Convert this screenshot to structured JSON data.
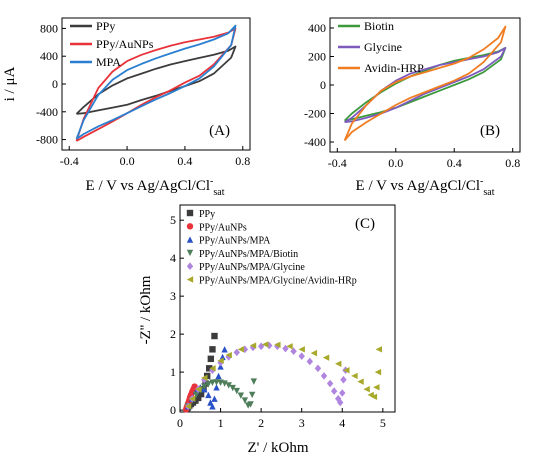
{
  "chart_data": [
    {
      "type": "line",
      "panel_label": "(A)",
      "xlabel": "E / V vs Ag/AgCl/Cl",
      "xlabel_sup": "-",
      "xlabel_sub": "sat",
      "ylabel": "i / μA",
      "xlim": [
        -0.45,
        0.85
      ],
      "ylim": [
        -950,
        950
      ],
      "xticks": [
        -0.4,
        0.0,
        0.4,
        0.8
      ],
      "xtick_labels": [
        "-0.4",
        "0.0",
        "0.4",
        "0.8"
      ],
      "yticks": [
        -800,
        -400,
        0,
        400,
        800
      ],
      "ytick_labels": [
        "-800",
        "-400",
        "0",
        "400",
        "800"
      ],
      "legend_position": "top-left",
      "series": [
        {
          "name": "PPy",
          "color": "#3c3c3c",
          "loop": [
            [
              -0.35,
              -430
            ],
            [
              -0.3,
              -330
            ],
            [
              -0.2,
              -150
            ],
            [
              -0.1,
              -20
            ],
            [
              0.0,
              80
            ],
            [
              0.1,
              150
            ],
            [
              0.2,
              220
            ],
            [
              0.3,
              280
            ],
            [
              0.4,
              330
            ],
            [
              0.5,
              375
            ],
            [
              0.6,
              420
            ],
            [
              0.7,
              480
            ],
            [
              0.75,
              540
            ],
            [
              0.72,
              380
            ],
            [
              0.6,
              150
            ],
            [
              0.5,
              40
            ],
            [
              0.4,
              -30
            ],
            [
              0.3,
              -100
            ],
            [
              0.2,
              -170
            ],
            [
              0.1,
              -230
            ],
            [
              0.0,
              -300
            ],
            [
              -0.1,
              -340
            ],
            [
              -0.2,
              -380
            ],
            [
              -0.3,
              -420
            ],
            [
              -0.35,
              -430
            ]
          ]
        },
        {
          "name": "PPy/AuNPs",
          "color": "#e8333a",
          "loop": [
            [
              -0.35,
              -820
            ],
            [
              -0.3,
              -500
            ],
            [
              -0.2,
              -60
            ],
            [
              -0.1,
              180
            ],
            [
              0.0,
              330
            ],
            [
              0.1,
              420
            ],
            [
              0.2,
              490
            ],
            [
              0.3,
              550
            ],
            [
              0.4,
              600
            ],
            [
              0.5,
              640
            ],
            [
              0.6,
              680
            ],
            [
              0.7,
              740
            ],
            [
              0.75,
              800
            ],
            [
              0.72,
              560
            ],
            [
              0.6,
              280
            ],
            [
              0.5,
              120
            ],
            [
              0.4,
              20
            ],
            [
              0.3,
              -90
            ],
            [
              0.2,
              -190
            ],
            [
              0.1,
              -300
            ],
            [
              0.0,
              -420
            ],
            [
              -0.1,
              -540
            ],
            [
              -0.2,
              -650
            ],
            [
              -0.3,
              -760
            ],
            [
              -0.35,
              -820
            ]
          ]
        },
        {
          "name": "MPA",
          "color": "#2a7fd0",
          "loop": [
            [
              -0.35,
              -790
            ],
            [
              -0.3,
              -520
            ],
            [
              -0.2,
              -160
            ],
            [
              -0.1,
              60
            ],
            [
              0.0,
              200
            ],
            [
              0.1,
              290
            ],
            [
              0.2,
              370
            ],
            [
              0.3,
              440
            ],
            [
              0.4,
              510
            ],
            [
              0.5,
              570
            ],
            [
              0.6,
              640
            ],
            [
              0.7,
              730
            ],
            [
              0.75,
              840
            ],
            [
              0.72,
              560
            ],
            [
              0.6,
              250
            ],
            [
              0.5,
              80
            ],
            [
              0.4,
              -30
            ],
            [
              0.3,
              -130
            ],
            [
              0.2,
              -220
            ],
            [
              0.1,
              -320
            ],
            [
              0.0,
              -420
            ],
            [
              -0.1,
              -520
            ],
            [
              -0.2,
              -610
            ],
            [
              -0.3,
              -720
            ],
            [
              -0.35,
              -790
            ]
          ]
        }
      ]
    },
    {
      "type": "line",
      "panel_label": "(B)",
      "xlabel": "E / V vs Ag/AgCl/Cl",
      "xlabel_sup": "-",
      "xlabel_sub": "sat",
      "ylabel": "",
      "xlim": [
        -0.45,
        0.85
      ],
      "ylim": [
        -470,
        470
      ],
      "xticks": [
        -0.4,
        0.0,
        0.4,
        0.8
      ],
      "xtick_labels": [
        "-0.4",
        "0.0",
        "0.4",
        "0.8"
      ],
      "yticks": [
        -400,
        -200,
        0,
        200,
        400
      ],
      "ytick_labels": [
        "-400",
        "-200",
        "0",
        "200",
        "400"
      ],
      "legend_position": "top-left",
      "series": [
        {
          "name": "Biotin",
          "color": "#3c9a3c",
          "loop": [
            [
              -0.35,
              -250
            ],
            [
              -0.3,
              -200
            ],
            [
              -0.2,
              -120
            ],
            [
              -0.1,
              -50
            ],
            [
              0.0,
              10
            ],
            [
              0.1,
              60
            ],
            [
              0.2,
              100
            ],
            [
              0.3,
              140
            ],
            [
              0.4,
              170
            ],
            [
              0.5,
              190
            ],
            [
              0.6,
              210
            ],
            [
              0.7,
              235
            ],
            [
              0.75,
              260
            ],
            [
              0.72,
              180
            ],
            [
              0.6,
              90
            ],
            [
              0.5,
              40
            ],
            [
              0.4,
              0
            ],
            [
              0.3,
              -40
            ],
            [
              0.2,
              -80
            ],
            [
              0.1,
              -120
            ],
            [
              0.0,
              -160
            ],
            [
              -0.1,
              -190
            ],
            [
              -0.2,
              -215
            ],
            [
              -0.3,
              -240
            ],
            [
              -0.35,
              -250
            ]
          ]
        },
        {
          "name": "Glycine",
          "color": "#7d5bbd",
          "loop": [
            [
              -0.35,
              -260
            ],
            [
              -0.3,
              -230
            ],
            [
              -0.2,
              -140
            ],
            [
              -0.1,
              -40
            ],
            [
              0.0,
              30
            ],
            [
              0.1,
              80
            ],
            [
              0.2,
              110
            ],
            [
              0.3,
              140
            ],
            [
              0.4,
              160
            ],
            [
              0.5,
              180
            ],
            [
              0.6,
              200
            ],
            [
              0.7,
              230
            ],
            [
              0.75,
              260
            ],
            [
              0.72,
              200
            ],
            [
              0.6,
              110
            ],
            [
              0.5,
              60
            ],
            [
              0.4,
              20
            ],
            [
              0.3,
              -20
            ],
            [
              0.2,
              -60
            ],
            [
              0.1,
              -110
            ],
            [
              0.0,
              -160
            ],
            [
              -0.1,
              -200
            ],
            [
              -0.2,
              -230
            ],
            [
              -0.3,
              -255
            ],
            [
              -0.35,
              -260
            ]
          ]
        },
        {
          "name": "Avidin-HRP",
          "color": "#f07d22",
          "loop": [
            [
              -0.35,
              -390
            ],
            [
              -0.3,
              -270
            ],
            [
              -0.2,
              -140
            ],
            [
              -0.1,
              -40
            ],
            [
              0.0,
              20
            ],
            [
              0.1,
              60
            ],
            [
              0.2,
              90
            ],
            [
              0.3,
              120
            ],
            [
              0.4,
              150
            ],
            [
              0.5,
              190
            ],
            [
              0.6,
              250
            ],
            [
              0.7,
              330
            ],
            [
              0.75,
              410
            ],
            [
              0.72,
              300
            ],
            [
              0.6,
              160
            ],
            [
              0.5,
              80
            ],
            [
              0.4,
              30
            ],
            [
              0.3,
              -10
            ],
            [
              0.2,
              -50
            ],
            [
              0.1,
              -90
            ],
            [
              0.0,
              -140
            ],
            [
              -0.1,
              -200
            ],
            [
              -0.2,
              -260
            ],
            [
              -0.3,
              -330
            ],
            [
              -0.35,
              -390
            ]
          ]
        }
      ]
    },
    {
      "type": "scatter",
      "panel_label": "(C)",
      "xlabel": "Z' / kOhm",
      "ylabel": "-Z'' / kOhm",
      "xlim": [
        0,
        5.3
      ],
      "ylim": [
        -0.05,
        5.4
      ],
      "xticks": [
        0,
        1,
        2,
        3,
        4,
        5
      ],
      "xtick_labels": [
        "0",
        "1",
        "2",
        "3",
        "4",
        "5"
      ],
      "yticks": [
        0,
        1,
        2,
        3,
        4,
        5
      ],
      "ytick_labels": [
        "0",
        "1",
        "2",
        "3",
        "4",
        "5"
      ],
      "legend_position": "top-left",
      "series": [
        {
          "name": "PPy",
          "color": "#3c3c3c",
          "marker": "square",
          "x": [
            0.18,
            0.2,
            0.23,
            0.27,
            0.32,
            0.38,
            0.45,
            0.52,
            0.58,
            0.63,
            0.67,
            0.72,
            0.76,
            0.8,
            0.85
          ],
          "y": [
            0.03,
            0.08,
            0.12,
            0.16,
            0.2,
            0.25,
            0.32,
            0.42,
            0.55,
            0.7,
            0.9,
            1.1,
            1.35,
            1.6,
            1.95
          ]
        },
        {
          "name": "PPy/AuNPs",
          "color": "#e8333a",
          "marker": "circle",
          "x": [
            0.15,
            0.17,
            0.19,
            0.21,
            0.23,
            0.25,
            0.27,
            0.3,
            0.33,
            0.36
          ],
          "y": [
            0.02,
            0.08,
            0.14,
            0.2,
            0.27,
            0.34,
            0.4,
            0.48,
            0.55,
            0.62
          ]
        },
        {
          "name": "PPy/AuNPs/MPA",
          "color": "#2a52c8",
          "marker": "triangle-up",
          "x": [
            0.2,
            0.3,
            0.4,
            0.5,
            0.6,
            0.7,
            0.75,
            0.8,
            0.85,
            0.9,
            0.95,
            1.0,
            1.05,
            1.1
          ],
          "y": [
            0.1,
            0.3,
            0.5,
            0.6,
            0.55,
            0.4,
            0.2,
            0.1,
            0.3,
            0.6,
            0.9,
            1.15,
            1.4,
            1.6
          ]
        },
        {
          "name": "PPy/AuNPs/MPA/Biotin",
          "color": "#4e7e5a",
          "marker": "triangle-down",
          "x": [
            0.2,
            0.3,
            0.4,
            0.5,
            0.6,
            0.7,
            0.8,
            0.9,
            1.0,
            1.1,
            1.2,
            1.3,
            1.4,
            1.5,
            1.6,
            1.68,
            1.74,
            1.78,
            1.82
          ],
          "y": [
            0.1,
            0.25,
            0.4,
            0.52,
            0.62,
            0.68,
            0.72,
            0.73,
            0.72,
            0.7,
            0.65,
            0.58,
            0.5,
            0.38,
            0.25,
            0.12,
            0.15,
            0.4,
            0.75
          ]
        },
        {
          "name": "PPy/AuNPs/MPA/Glycine",
          "color": "#b085e0",
          "marker": "diamond",
          "x": [
            0.2,
            0.3,
            0.45,
            0.6,
            0.8,
            1.0,
            1.2,
            1.4,
            1.6,
            1.8,
            2.0,
            2.2,
            2.4,
            2.6,
            2.8,
            3.0,
            3.2,
            3.4,
            3.55,
            3.7,
            3.8,
            3.9,
            3.95,
            4.0,
            4.03,
            4.08
          ],
          "y": [
            0.1,
            0.3,
            0.55,
            0.8,
            1.05,
            1.25,
            1.4,
            1.52,
            1.6,
            1.65,
            1.68,
            1.7,
            1.68,
            1.62,
            1.55,
            1.42,
            1.28,
            1.1,
            0.9,
            0.7,
            0.5,
            0.3,
            0.2,
            0.45,
            0.8,
            1.05
          ]
        },
        {
          "name": "PPy/AuNPs/MPA/Glycine/Avidin-HRp",
          "color": "#a8a82a",
          "marker": "triangle-left",
          "x": [
            0.2,
            0.3,
            0.45,
            0.6,
            0.8,
            1.0,
            1.2,
            1.5,
            1.8,
            2.1,
            2.4,
            2.7,
            3.0,
            3.3,
            3.6,
            3.9,
            4.1,
            4.3,
            4.45,
            4.6,
            4.7,
            4.78,
            4.84,
            4.88,
            4.9
          ],
          "y": [
            0.1,
            0.3,
            0.55,
            0.85,
            1.1,
            1.3,
            1.45,
            1.6,
            1.7,
            1.73,
            1.72,
            1.68,
            1.6,
            1.5,
            1.38,
            1.22,
            1.05,
            0.9,
            0.75,
            0.55,
            0.4,
            0.35,
            0.6,
            1.0,
            1.6
          ]
        }
      ]
    }
  ]
}
